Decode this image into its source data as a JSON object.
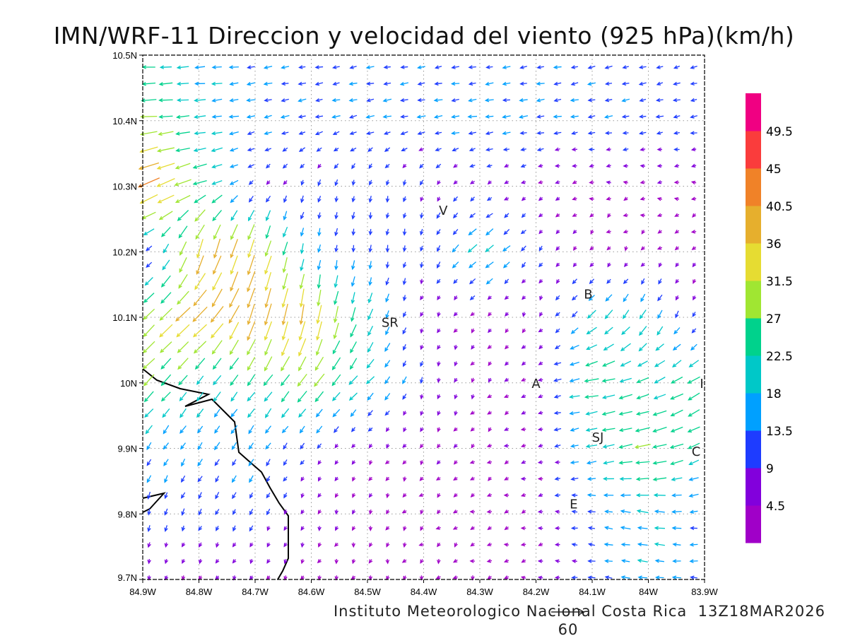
{
  "chart_data": {
    "type": "vector-field",
    "title": "IMN/WRF-11 Direccion y velocidad del viento (925 hPa)(km/h)",
    "footer": "Instituto Meteorologico Nacional Costa Rica  13Z18MAR2026",
    "reference_vector": {
      "value": 60,
      "label": "60"
    },
    "xlim": [
      -84.9,
      -83.9
    ],
    "ylim": [
      9.7,
      10.5
    ],
    "grid": true,
    "x_ticks": [
      {
        "value": -84.9,
        "label": "84.9W"
      },
      {
        "value": -84.8,
        "label": "84.8W"
      },
      {
        "value": -84.7,
        "label": "84.7W"
      },
      {
        "value": -84.6,
        "label": "84.6W"
      },
      {
        "value": -84.5,
        "label": "84.5W"
      },
      {
        "value": -84.4,
        "label": "84.4W"
      },
      {
        "value": -84.3,
        "label": "84.3W"
      },
      {
        "value": -84.2,
        "label": "84.2W"
      },
      {
        "value": -84.1,
        "label": "84.1W"
      },
      {
        "value": -84.0,
        "label": "84W"
      },
      {
        "value": -83.9,
        "label": "83.9W"
      }
    ],
    "y_ticks": [
      {
        "value": 9.7,
        "label": "9.7N"
      },
      {
        "value": 9.8,
        "label": "9.8N"
      },
      {
        "value": 9.9,
        "label": "9.9N"
      },
      {
        "value": 10.0,
        "label": "10N"
      },
      {
        "value": 10.1,
        "label": "10.1N"
      },
      {
        "value": 10.2,
        "label": "10.2N"
      },
      {
        "value": 10.3,
        "label": "10.3N"
      },
      {
        "value": 10.4,
        "label": "10.4N"
      },
      {
        "value": 10.5,
        "label": "10.5N"
      }
    ],
    "colorbar": {
      "levels": [
        "4.5",
        "9",
        "13.5",
        "18",
        "22.5",
        "27",
        "31.5",
        "36",
        "40.5",
        "45",
        "49.5"
      ],
      "level_values": [
        4.5,
        9,
        13.5,
        18,
        22.5,
        27,
        31.5,
        36,
        40.5,
        45,
        49.5
      ],
      "colors": [
        "#a000c8",
        "#8200dc",
        "#1e3cff",
        "#00a0ff",
        "#00c8c8",
        "#00d28c",
        "#a0e632",
        "#e6dc32",
        "#e6af2d",
        "#f08228",
        "#fa3c3c",
        "#f00082"
      ]
    },
    "stations": [
      {
        "label": "V",
        "lon": -84.365,
        "lat": 10.264
      },
      {
        "label": "SR",
        "lon": -84.46,
        "lat": 10.093
      },
      {
        "label": "B",
        "lon": -84.107,
        "lat": 10.136
      },
      {
        "label": "A",
        "lon": -84.2,
        "lat": 10.0
      },
      {
        "label": "SJ",
        "lon": -84.09,
        "lat": 9.918
      },
      {
        "label": "C",
        "lon": -83.915,
        "lat": 9.896
      },
      {
        "label": "E",
        "lon": -84.133,
        "lat": 9.816
      },
      {
        "label": "I",
        "lon": -83.905,
        "lat": 10.0
      }
    ],
    "wind_grid": {
      "units": "km/h",
      "lons": [
        -84.9,
        -84.8,
        -84.7,
        -84.6,
        -84.5,
        -84.4,
        -84.3,
        -84.2,
        -84.1,
        -84.0,
        -83.9
      ],
      "lats": [
        10.5,
        10.4,
        10.3,
        10.2,
        10.1,
        10.0,
        9.9,
        9.8,
        9.7
      ],
      "u": [
        [
          -22,
          -18,
          -14,
          -12,
          -12,
          -12,
          -12,
          -12,
          -12,
          -11,
          -10
        ],
        [
          -30,
          -20,
          -14,
          -13,
          -14,
          -14,
          -15,
          -14,
          -13,
          -12,
          -12
        ],
        [
          -40,
          -25,
          -6,
          -3,
          -2,
          -3,
          -6,
          -4,
          -3,
          -3,
          -3
        ],
        [
          -8,
          -10,
          -12,
          -3,
          -1,
          -2,
          -18,
          -6,
          -2,
          -2,
          -2
        ],
        [
          -20,
          -28,
          -12,
          -6,
          -8,
          -2,
          -3,
          -1,
          -15,
          -10,
          -2
        ],
        [
          -20,
          -12,
          -14,
          -18,
          -14,
          -2,
          -2,
          -5,
          -25,
          -20,
          -22
        ],
        [
          -8,
          -8,
          -8,
          -6,
          -3,
          -2,
          -3,
          -5,
          -18,
          -28,
          -18
        ],
        [
          -2,
          -5,
          -5,
          -2,
          -1,
          -2,
          -2,
          -4,
          -12,
          -20,
          -12
        ],
        [
          -1,
          -2,
          -2,
          -1,
          -1,
          -1,
          -1,
          -4,
          -12,
          -16,
          -12
        ]
      ],
      "v": [
        [
          -1,
          -1,
          -2,
          -2,
          -2,
          -2,
          -2,
          -2,
          -3,
          -3,
          -3
        ],
        [
          -2,
          -2,
          -3,
          -3,
          -3,
          -2,
          -2,
          -2,
          -2,
          -2,
          -2
        ],
        [
          -18,
          -8,
          -6,
          -10,
          -10,
          -8,
          -4,
          -2,
          0,
          0,
          0
        ],
        [
          -4,
          -35,
          -35,
          -14,
          -12,
          -10,
          -14,
          -8,
          -3,
          -2,
          -2
        ],
        [
          -20,
          -25,
          -38,
          -38,
          -20,
          -4,
          -3,
          -3,
          -14,
          -18,
          -5
        ],
        [
          -20,
          -16,
          -18,
          -22,
          -14,
          -10,
          -3,
          -2,
          -4,
          -8,
          -14
        ],
        [
          -12,
          -12,
          -12,
          -8,
          -4,
          -3,
          -2,
          -1,
          -4,
          -5,
          -10
        ],
        [
          -12,
          -10,
          -10,
          -5,
          -3,
          -2,
          -1,
          -1,
          2,
          3,
          -2
        ],
        [
          -4,
          -4,
          -3,
          -3,
          -2,
          -2,
          -1,
          0,
          1,
          2,
          0
        ]
      ]
    }
  }
}
